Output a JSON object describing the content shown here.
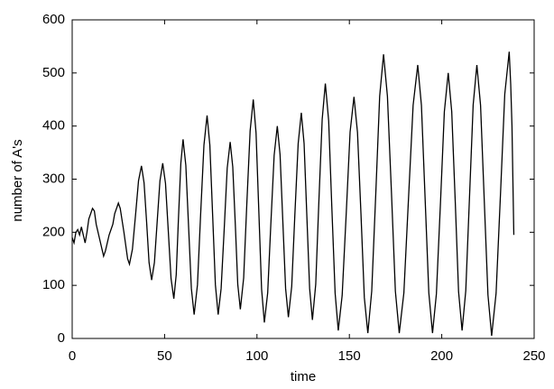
{
  "chart_data": {
    "type": "line",
    "xlabel": "time",
    "ylabel": "number of A's",
    "color": "#000000",
    "x": [
      0,
      1,
      2,
      3,
      4,
      5,
      6,
      7,
      8,
      9,
      11,
      12,
      13,
      15,
      17,
      18,
      20,
      22,
      23,
      25,
      26,
      28,
      30,
      31,
      32.6,
      34.3,
      35.9,
      37.5,
      38.9,
      40.3,
      41.6,
      43,
      44.5,
      46,
      47.5,
      49,
      50.5,
      52,
      53.5,
      55,
      56.3,
      57.5,
      58.8,
      60,
      61.5,
      63,
      64.5,
      66,
      67.8,
      69.5,
      71.3,
      73,
      74.5,
      76,
      77.5,
      79,
      80.6,
      82.3,
      83.9,
      85.5,
      86.9,
      88.3,
      89.6,
      91,
      92.8,
      94.5,
      96.3,
      98,
      99.5,
      101,
      102.5,
      104,
      105.8,
      107.5,
      109.3,
      111,
      112.5,
      114,
      115.5,
      117,
      118.8,
      120.5,
      122.3,
      124,
      125.5,
      127,
      128.5,
      130,
      131.8,
      133.5,
      135.3,
      137,
      138.8,
      140.5,
      142.3,
      144,
      146.1,
      148.3,
      150.4,
      152.5,
      154.4,
      156.3,
      158.1,
      160,
      162.1,
      164.3,
      166.4,
      168.5,
      170.6,
      172.8,
      174.9,
      177,
      179.5,
      182,
      184.5,
      187,
      189,
      191,
      193,
      195,
      197.1,
      199.3,
      201.4,
      203.5,
      205.4,
      207.3,
      209.1,
      211,
      213,
      215,
      217,
      219,
      221,
      223,
      225,
      227,
      229.4,
      231.8,
      234.1,
      236.5,
      237.3,
      238,
      239
    ],
    "values": [
      190,
      180,
      200,
      205,
      195,
      210,
      195,
      180,
      200,
      225,
      245,
      240,
      215,
      185,
      155,
      165,
      195,
      215,
      235,
      255,
      245,
      200,
      150,
      140,
      168,
      233,
      297,
      325,
      293,
      218,
      143,
      110,
      143,
      220,
      297,
      330,
      292,
      203,
      113,
      75,
      120,
      225,
      330,
      375,
      326,
      210,
      94,
      45,
      101,
      233,
      364,
      420,
      364,
      233,
      101,
      45,
      94,
      208,
      321,
      370,
      323,
      213,
      102,
      55,
      114,
      253,
      391,
      450,
      387,
      240,
      93,
      30,
      86,
      215,
      345,
      400,
      346,
      220,
      94,
      40,
      98,
      233,
      367,
      425,
      367,
      230,
      94,
      35,
      102,
      258,
      413,
      480,
      410,
      248,
      85,
      15,
      81,
      235,
      389,
      455,
      388,
      233,
      77,
      10,
      89,
      273,
      456,
      535,
      456,
      273,
      89,
      10,
      86,
      263,
      439,
      515,
      439,
      263,
      86,
      10,
      84,
      255,
      427,
      500,
      427,
      258,
      88,
      15,
      90,
      265,
      440,
      515,
      439,
      260,
      82,
      5,
      85,
      273,
      460,
      540,
      480,
      400,
      195
    ],
    "xlim": [
      0,
      250
    ],
    "xticks": [
      0,
      50,
      100,
      150,
      200,
      250
    ],
    "ylim": [
      0,
      600
    ],
    "yticks": [
      0,
      100,
      200,
      300,
      400,
      500,
      600
    ]
  }
}
